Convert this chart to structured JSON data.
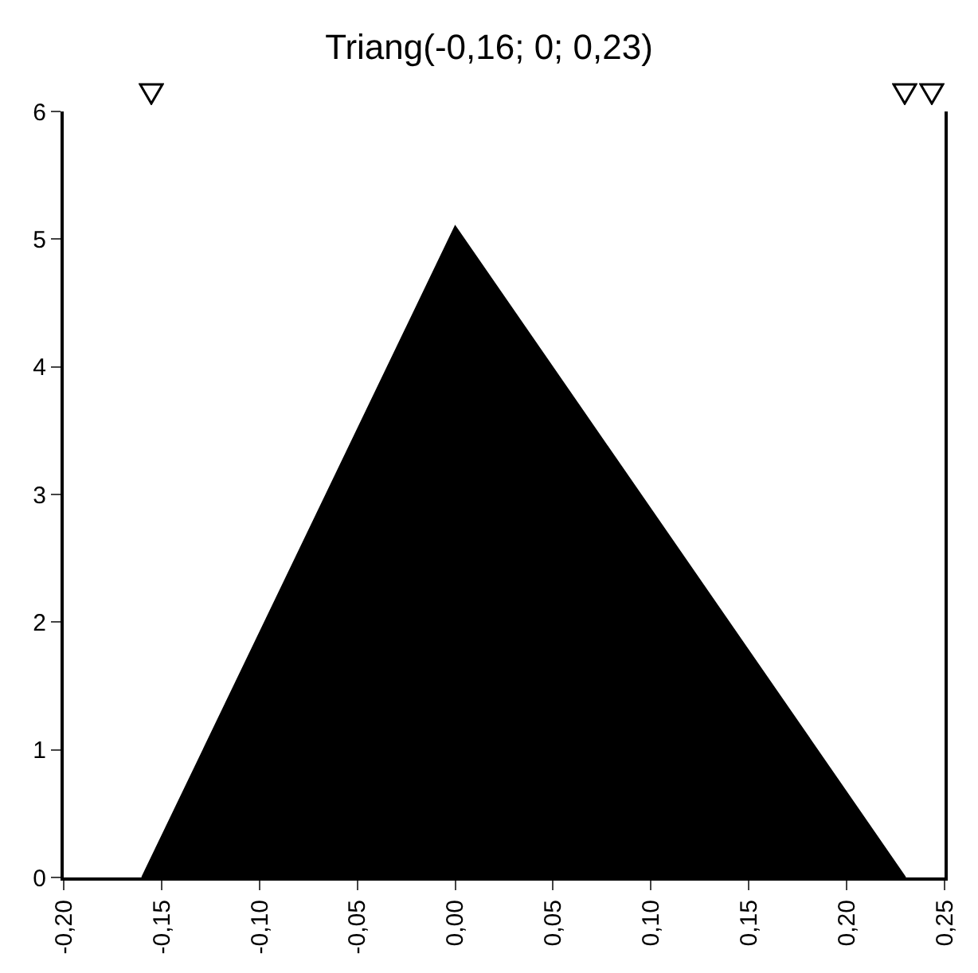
{
  "chart_data": {
    "type": "area",
    "title": "Triang(-0,16; 0; 0,23)",
    "x": [
      -0.16,
      0,
      0.23
    ],
    "series": [
      {
        "color": "#000000",
        "values": [
          0,
          5.1,
          0
        ]
      }
    ],
    "xlim": [
      -0.2,
      0.25
    ],
    "xticks": [
      {
        "value": -0.2,
        "label": "-0,20"
      },
      {
        "value": -0.15,
        "label": "-0,15"
      },
      {
        "value": -0.1,
        "label": "-0,10"
      },
      {
        "value": -0.05,
        "label": "-0,05"
      },
      {
        "value": 0,
        "label": "0,00"
      },
      {
        "value": 0.05,
        "label": "0,05"
      },
      {
        "value": 0.1,
        "label": "0,10"
      },
      {
        "value": 0.15,
        "label": "0,15"
      },
      {
        "value": 0.2,
        "label": "0,20"
      },
      {
        "value": 0.25,
        "label": "0,25"
      }
    ],
    "ylim": [
      0,
      6
    ],
    "yticks": [
      0,
      1,
      2,
      3,
      4,
      5,
      6
    ],
    "grid": false
  }
}
